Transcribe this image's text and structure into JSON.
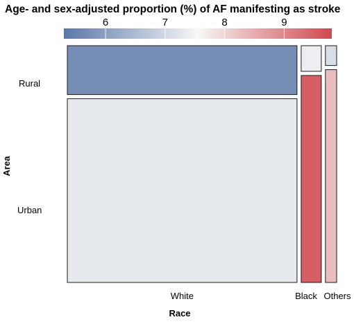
{
  "chart_data": {
    "type": "mosaic",
    "title": "Age- and sex-adjusted proportion (%) of AF manifesting as stroke",
    "xlabel": "Race",
    "ylabel": "Area",
    "colorbar": {
      "ticks": [
        "6",
        "7",
        "8",
        "9"
      ],
      "range": [
        5.3,
        9.8
      ],
      "colors": {
        "low": "#5a77a8",
        "mid": "#f7f7f7",
        "high": "#d1484f"
      }
    },
    "x_categories": [
      "White",
      "Black",
      "Others"
    ],
    "y_categories": [
      "Rural",
      "Urban"
    ],
    "column_shares": [
      0.88,
      0.077,
      0.043
    ],
    "cells": [
      {
        "race": "White",
        "area": "Rural",
        "share": 0.21,
        "value": 5.7
      },
      {
        "race": "White",
        "area": "Urban",
        "share": 0.79,
        "value": 7.3
      },
      {
        "race": "Black",
        "area": "Rural",
        "share": 0.11,
        "value": 7.4
      },
      {
        "race": "Black",
        "area": "Urban",
        "share": 0.89,
        "value": 9.5
      },
      {
        "race": "Others",
        "area": "Rural",
        "share": 0.085,
        "value": 7.1
      },
      {
        "race": "Others",
        "area": "Urban",
        "share": 0.915,
        "value": 8.3
      }
    ]
  }
}
